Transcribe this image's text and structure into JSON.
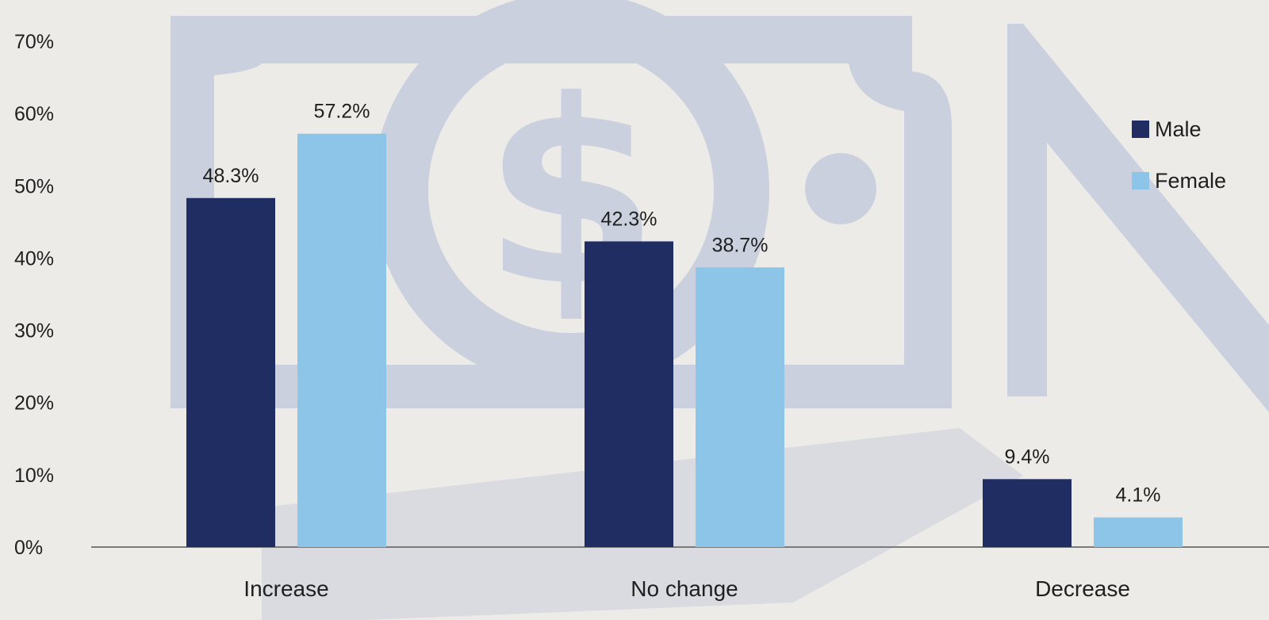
{
  "chart_data": {
    "type": "bar",
    "categories": [
      "Increase",
      "No change",
      "Decrease"
    ],
    "series": [
      {
        "name": "Male",
        "values": [
          48.3,
          42.3,
          9.4
        ],
        "color": "#1f2d63"
      },
      {
        "name": "Female",
        "values": [
          57.2,
          38.7,
          4.1
        ],
        "color": "#8dc5e8"
      }
    ],
    "value_labels": [
      [
        "48.3%",
        "42.3%",
        "9.4%"
      ],
      [
        "57.2%",
        "38.7%",
        "4.1%"
      ]
    ],
    "yticks": [
      "0%",
      "10%",
      "20%",
      "30%",
      "40%",
      "50%",
      "60%",
      "70%"
    ],
    "ylim": [
      0,
      70
    ],
    "xlabel": "",
    "ylabel": "",
    "title": "",
    "grid": false,
    "legend_position": "top-right",
    "background_color": "#ecebe7",
    "watermark_color": "#c3cad9"
  }
}
